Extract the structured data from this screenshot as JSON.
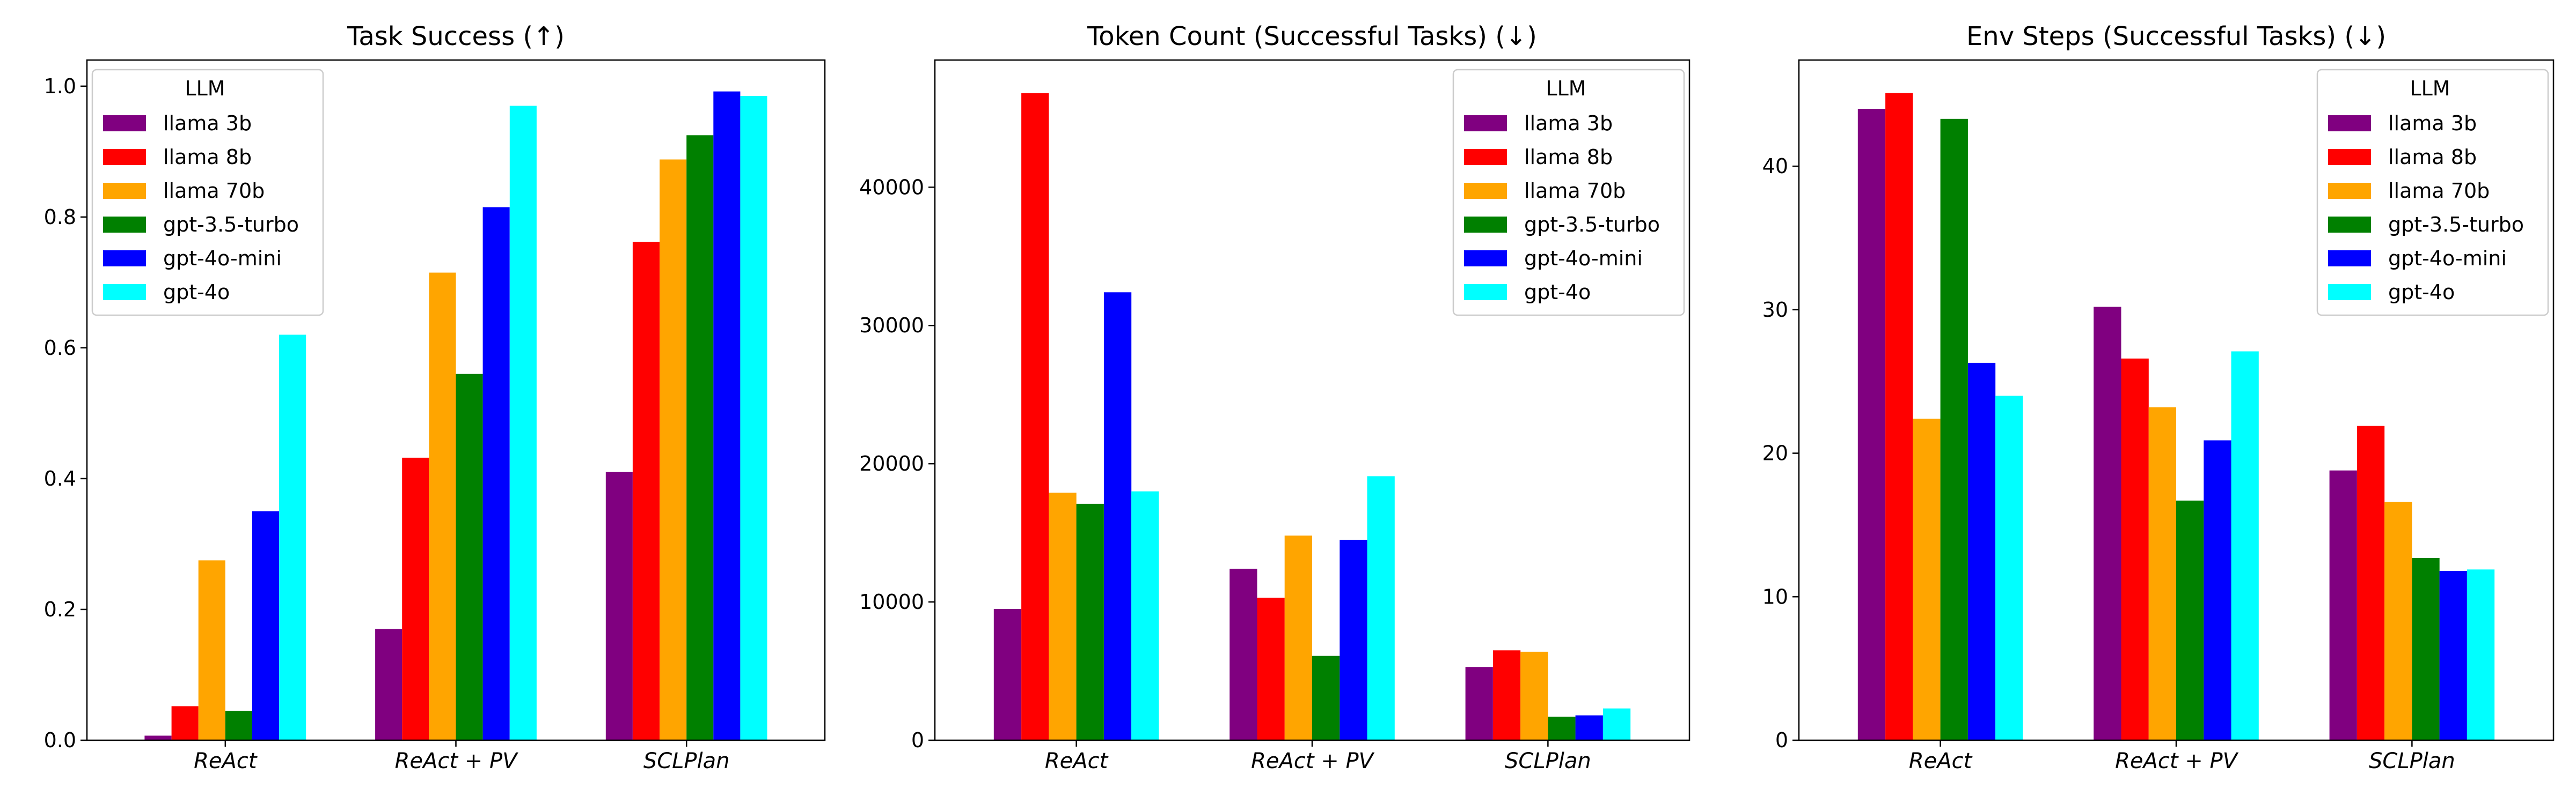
{
  "chart_data": [
    {
      "type": "bar",
      "title": "Task Success (↑)",
      "categories": [
        "ReAct",
        "ReAct + PV",
        "SCLPlan"
      ],
      "ylim": [
        0,
        1.04
      ],
      "yticks": [
        0.0,
        0.2,
        0.4,
        0.6,
        0.8,
        1.0
      ],
      "ytick_labels": [
        "0.0",
        "0.2",
        "0.4",
        "0.6",
        "0.8",
        "1.0"
      ],
      "legend_position": "top-left",
      "legend_title": "LLM",
      "series": [
        {
          "name": "llama 3b",
          "color": "#800080",
          "values": [
            0.007,
            0.17,
            0.41
          ]
        },
        {
          "name": "llama 8b",
          "color": "#ff0000",
          "values": [
            0.052,
            0.432,
            0.762
          ]
        },
        {
          "name": "llama 70b",
          "color": "#ffa500",
          "values": [
            0.275,
            0.715,
            0.888
          ]
        },
        {
          "name": "gpt-3.5-turbo",
          "color": "#008000",
          "values": [
            0.045,
            0.56,
            0.925
          ]
        },
        {
          "name": "gpt-4o-mini",
          "color": "#0000ff",
          "values": [
            0.35,
            0.815,
            0.992
          ]
        },
        {
          "name": "gpt-4o",
          "color": "#00ffff",
          "values": [
            0.62,
            0.97,
            0.985
          ]
        }
      ]
    },
    {
      "type": "bar",
      "title": "Token Count (Successful Tasks) (↓)",
      "categories": [
        "ReAct",
        "ReAct + PV",
        "SCLPlan"
      ],
      "ylim": [
        0,
        49200
      ],
      "yticks": [
        0,
        10000,
        20000,
        30000,
        40000
      ],
      "ytick_labels": [
        "0",
        "10000",
        "20000",
        "30000",
        "40000"
      ],
      "legend_position": "top-right",
      "legend_title": "LLM",
      "series": [
        {
          "name": "llama 3b",
          "color": "#800080",
          "values": [
            9500,
            12400,
            5300
          ]
        },
        {
          "name": "llama 8b",
          "color": "#ff0000",
          "values": [
            46800,
            10300,
            6500
          ]
        },
        {
          "name": "llama 70b",
          "color": "#ffa500",
          "values": [
            17900,
            14800,
            6400
          ]
        },
        {
          "name": "gpt-3.5-turbo",
          "color": "#008000",
          "values": [
            17100,
            6100,
            1700
          ]
        },
        {
          "name": "gpt-4o-mini",
          "color": "#0000ff",
          "values": [
            32400,
            14500,
            1800
          ]
        },
        {
          "name": "gpt-4o",
          "color": "#00ffff",
          "values": [
            18000,
            19100,
            2300
          ]
        }
      ]
    },
    {
      "type": "bar",
      "title": "Env Steps (Successful Tasks) (↓)",
      "categories": [
        "ReAct",
        "ReAct + PV",
        "SCLPlan"
      ],
      "ylim": [
        0,
        47.4
      ],
      "yticks": [
        0,
        10,
        20,
        30,
        40
      ],
      "ytick_labels": [
        "0",
        "10",
        "20",
        "30",
        "40"
      ],
      "legend_position": "top-right",
      "legend_title": "LLM",
      "series": [
        {
          "name": "llama 3b",
          "color": "#800080",
          "values": [
            44.0,
            30.2,
            18.8
          ]
        },
        {
          "name": "llama 8b",
          "color": "#ff0000",
          "values": [
            45.1,
            26.6,
            21.9
          ]
        },
        {
          "name": "llama 70b",
          "color": "#ffa500",
          "values": [
            22.4,
            23.2,
            16.6
          ]
        },
        {
          "name": "gpt-3.5-turbo",
          "color": "#008000",
          "values": [
            43.3,
            16.7,
            12.7
          ]
        },
        {
          "name": "gpt-4o-mini",
          "color": "#0000ff",
          "values": [
            26.3,
            20.9,
            11.8
          ]
        },
        {
          "name": "gpt-4o",
          "color": "#00ffff",
          "values": [
            24.0,
            27.1,
            11.9
          ]
        }
      ]
    }
  ]
}
